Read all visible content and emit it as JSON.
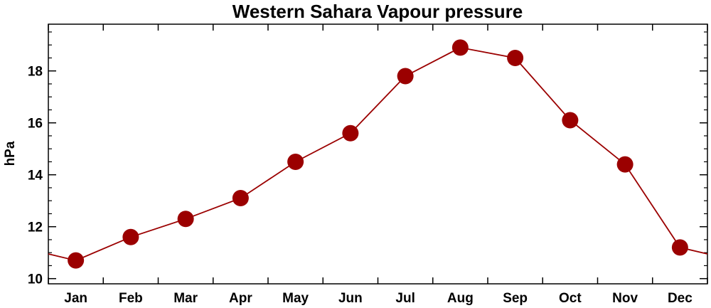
{
  "chart_data": {
    "type": "line",
    "title": "Western Sahara Vapour pressure",
    "xlabel": "",
    "ylabel": "hPa",
    "categories": [
      "Jan",
      "Feb",
      "Mar",
      "Apr",
      "May",
      "Jun",
      "Jul",
      "Aug",
      "Sep",
      "Oct",
      "Nov",
      "Dec"
    ],
    "series": [
      {
        "values": [
          10.7,
          11.6,
          12.3,
          13.1,
          14.5,
          15.6,
          17.8,
          18.9,
          18.5,
          16.1,
          14.4,
          11.2
        ]
      }
    ],
    "ylim": [
      9.8,
      19.8
    ],
    "yticks": [
      "10",
      "12",
      "14",
      "16",
      "18"
    ],
    "grid": false,
    "colors": {
      "series": "#9b0000"
    }
  }
}
